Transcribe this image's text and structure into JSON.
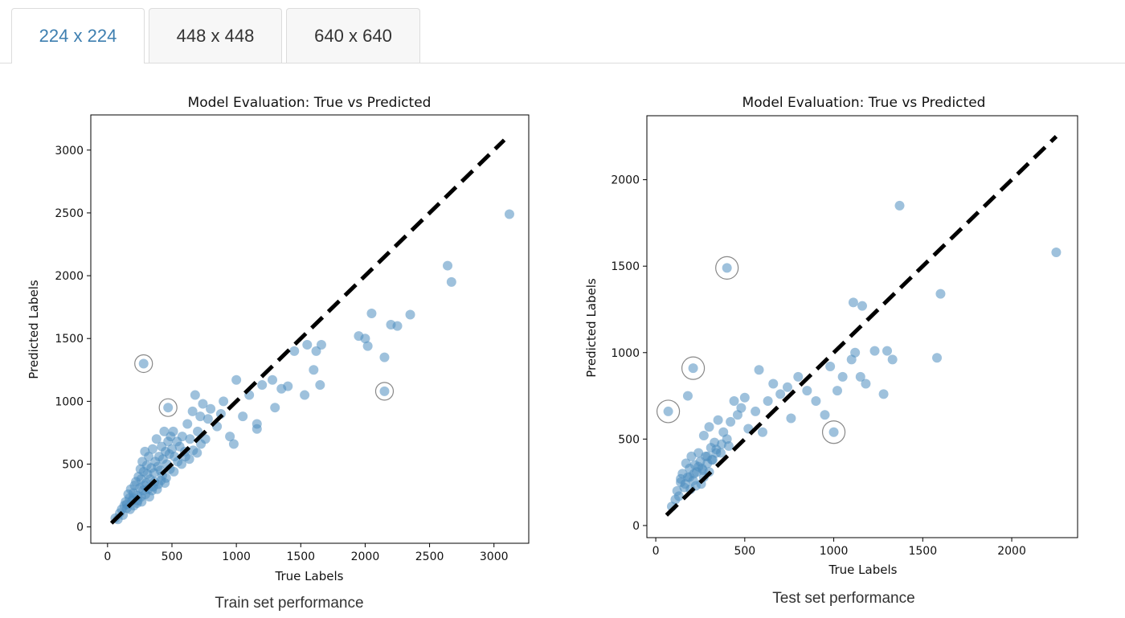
{
  "tabs": [
    {
      "label": "224 x 224",
      "active": true
    },
    {
      "label": "448 x 448",
      "active": false
    },
    {
      "label": "640 x 640",
      "active": false
    }
  ],
  "colors": {
    "accent": "#3e7fb0",
    "point": "#4f8ec0",
    "diagonal": "#000000"
  },
  "chart_data": [
    {
      "type": "scatter",
      "title": "Model Evaluation: True vs Predicted",
      "xlabel": "True Labels",
      "ylabel": "Predicted Labels",
      "caption": "Train set performance",
      "xlim": [
        -130,
        3270
      ],
      "ylim": [
        -130,
        3280
      ],
      "xticks": [
        0,
        500,
        1000,
        1500,
        2000,
        2500,
        3000
      ],
      "yticks": [
        0,
        500,
        1000,
        1500,
        2000,
        2500,
        3000
      ],
      "reference_line": {
        "from": [
          30,
          30
        ],
        "to": [
          3080,
          3080
        ],
        "style": "dashed"
      },
      "points": [
        [
          60,
          70
        ],
        [
          80,
          60
        ],
        [
          95,
          110
        ],
        [
          110,
          140
        ],
        [
          120,
          95
        ],
        [
          130,
          170
        ],
        [
          140,
          200
        ],
        [
          150,
          150
        ],
        [
          160,
          260
        ],
        [
          170,
          230
        ],
        [
          180,
          300
        ],
        [
          190,
          210
        ],
        [
          200,
          270
        ],
        [
          210,
          330
        ],
        [
          220,
          360
        ],
        [
          230,
          250
        ],
        [
          240,
          400
        ],
        [
          250,
          310
        ],
        [
          255,
          460
        ],
        [
          260,
          380
        ],
        [
          270,
          520
        ],
        [
          275,
          290
        ],
        [
          280,
          440
        ],
        [
          290,
          600
        ],
        [
          300,
          350
        ],
        [
          305,
          490
        ],
        [
          310,
          420
        ],
        [
          320,
          560
        ],
        [
          330,
          380
        ],
        [
          340,
          470
        ],
        [
          350,
          620
        ],
        [
          360,
          430
        ],
        [
          370,
          520
        ],
        [
          380,
          700
        ],
        [
          390,
          480
        ],
        [
          400,
          560
        ],
        [
          410,
          450
        ],
        [
          420,
          640
        ],
        [
          430,
          540
        ],
        [
          440,
          760
        ],
        [
          450,
          600
        ],
        [
          460,
          500
        ],
        [
          470,
          680
        ],
        [
          480,
          580
        ],
        [
          490,
          720
        ],
        [
          500,
          620
        ],
        [
          510,
          760
        ],
        [
          520,
          560
        ],
        [
          540,
          680
        ],
        [
          560,
          640
        ],
        [
          580,
          720
        ],
        [
          600,
          600
        ],
        [
          620,
          820
        ],
        [
          640,
          700
        ],
        [
          660,
          920
        ],
        [
          680,
          1050
        ],
        [
          700,
          760
        ],
        [
          720,
          880
        ],
        [
          740,
          980
        ],
        [
          760,
          700
        ],
        [
          780,
          860
        ],
        [
          800,
          940
        ],
        [
          850,
          800
        ],
        [
          880,
          900
        ],
        [
          900,
          1000
        ],
        [
          950,
          720
        ],
        [
          980,
          660
        ],
        [
          1000,
          1170
        ],
        [
          1050,
          880
        ],
        [
          1100,
          1050
        ],
        [
          1160,
          780
        ],
        [
          1160,
          820
        ],
        [
          1200,
          1130
        ],
        [
          1280,
          1170
        ],
        [
          1300,
          950
        ],
        [
          1350,
          1100
        ],
        [
          1400,
          1120
        ],
        [
          1450,
          1400
        ],
        [
          1530,
          1050
        ],
        [
          1550,
          1450
        ],
        [
          1600,
          1250
        ],
        [
          1620,
          1400
        ],
        [
          1650,
          1130
        ],
        [
          1660,
          1450
        ],
        [
          1950,
          1520
        ],
        [
          2000,
          1500
        ],
        [
          2020,
          1440
        ],
        [
          2050,
          1700
        ],
        [
          2150,
          1350
        ],
        [
          2200,
          1610
        ],
        [
          2250,
          1600
        ],
        [
          2350,
          1690
        ],
        [
          2640,
          2080
        ],
        [
          2670,
          1950
        ],
        [
          3120,
          2490
        ],
        [
          200,
          230
        ],
        [
          230,
          190
        ],
        [
          260,
          240
        ],
        [
          285,
          330
        ],
        [
          315,
          300
        ],
        [
          345,
          290
        ],
        [
          365,
          360
        ],
        [
          395,
          340
        ],
        [
          425,
          410
        ],
        [
          455,
          390
        ],
        [
          485,
          460
        ],
        [
          515,
          440
        ],
        [
          545,
          520
        ],
        [
          575,
          500
        ],
        [
          605,
          560
        ],
        [
          635,
          540
        ],
        [
          665,
          610
        ],
        [
          695,
          590
        ],
        [
          725,
          660
        ],
        [
          150,
          180
        ],
        [
          175,
          140
        ],
        [
          205,
          170
        ],
        [
          235,
          210
        ],
        [
          265,
          200
        ],
        [
          295,
          260
        ],
        [
          325,
          240
        ],
        [
          355,
          320
        ],
        [
          385,
          300
        ],
        [
          415,
          370
        ],
        [
          445,
          350
        ],
        [
          280,
          1300
        ],
        [
          470,
          950
        ],
        [
          2150,
          1080
        ]
      ],
      "circled": [
        [
          280,
          1300
        ],
        [
          470,
          950
        ],
        [
          2150,
          1080
        ]
      ]
    },
    {
      "type": "scatter",
      "title": "Model Evaluation: True vs Predicted",
      "xlabel": "True Labels",
      "ylabel": "Predicted Labels",
      "caption": "Test set performance",
      "xlim": [
        -50,
        2370
      ],
      "ylim": [
        -70,
        2370
      ],
      "xticks": [
        0,
        500,
        1000,
        1500,
        2000
      ],
      "yticks": [
        0,
        500,
        1000,
        1500,
        2000
      ],
      "reference_line": {
        "from": [
          60,
          60
        ],
        "to": [
          2250,
          2250
        ],
        "style": "dashed"
      },
      "points": [
        [
          70,
          660
        ],
        [
          90,
          110
        ],
        [
          110,
          150
        ],
        [
          120,
          200
        ],
        [
          130,
          170
        ],
        [
          140,
          250
        ],
        [
          150,
          300
        ],
        [
          160,
          220
        ],
        [
          170,
          360
        ],
        [
          180,
          280
        ],
        [
          190,
          330
        ],
        [
          200,
          400
        ],
        [
          210,
          260
        ],
        [
          220,
          350
        ],
        [
          230,
          310
        ],
        [
          240,
          420
        ],
        [
          250,
          370
        ],
        [
          260,
          330
        ],
        [
          270,
          520
        ],
        [
          280,
          400
        ],
        [
          290,
          360
        ],
        [
          300,
          570
        ],
        [
          310,
          450
        ],
        [
          320,
          380
        ],
        [
          330,
          480
        ],
        [
          340,
          420
        ],
        [
          350,
          610
        ],
        [
          370,
          470
        ],
        [
          380,
          540
        ],
        [
          400,
          500
        ],
        [
          410,
          460
        ],
        [
          420,
          600
        ],
        [
          440,
          720
        ],
        [
          460,
          640
        ],
        [
          480,
          680
        ],
        [
          500,
          740
        ],
        [
          520,
          560
        ],
        [
          560,
          660
        ],
        [
          580,
          900
        ],
        [
          600,
          540
        ],
        [
          630,
          720
        ],
        [
          660,
          820
        ],
        [
          700,
          760
        ],
        [
          740,
          800
        ],
        [
          760,
          620
        ],
        [
          800,
          860
        ],
        [
          850,
          780
        ],
        [
          900,
          720
        ],
        [
          950,
          640
        ],
        [
          980,
          920
        ],
        [
          1000,
          540
        ],
        [
          1020,
          780
        ],
        [
          1050,
          860
        ],
        [
          1100,
          960
        ],
        [
          1110,
          1290
        ],
        [
          1120,
          1000
        ],
        [
          1150,
          860
        ],
        [
          1160,
          1270
        ],
        [
          1180,
          820
        ],
        [
          1230,
          1010
        ],
        [
          1280,
          760
        ],
        [
          1300,
          1010
        ],
        [
          1330,
          960
        ],
        [
          1370,
          1850
        ],
        [
          1580,
          970
        ],
        [
          1600,
          1340
        ],
        [
          2250,
          1580
        ],
        [
          180,
          750
        ],
        [
          210,
          910
        ],
        [
          400,
          1490
        ],
        [
          140,
          270
        ],
        [
          165,
          240
        ],
        [
          190,
          280
        ],
        [
          215,
          300
        ],
        [
          240,
          340
        ],
        [
          265,
          320
        ],
        [
          290,
          400
        ],
        [
          315,
          380
        ],
        [
          340,
          440
        ],
        [
          365,
          420
        ],
        [
          255,
          240
        ],
        [
          225,
          230
        ],
        [
          195,
          210
        ],
        [
          270,
          280
        ],
        [
          300,
          310
        ]
      ],
      "circled": [
        [
          70,
          660
        ],
        [
          210,
          910
        ],
        [
          400,
          1490
        ],
        [
          1000,
          540
        ]
      ]
    }
  ]
}
